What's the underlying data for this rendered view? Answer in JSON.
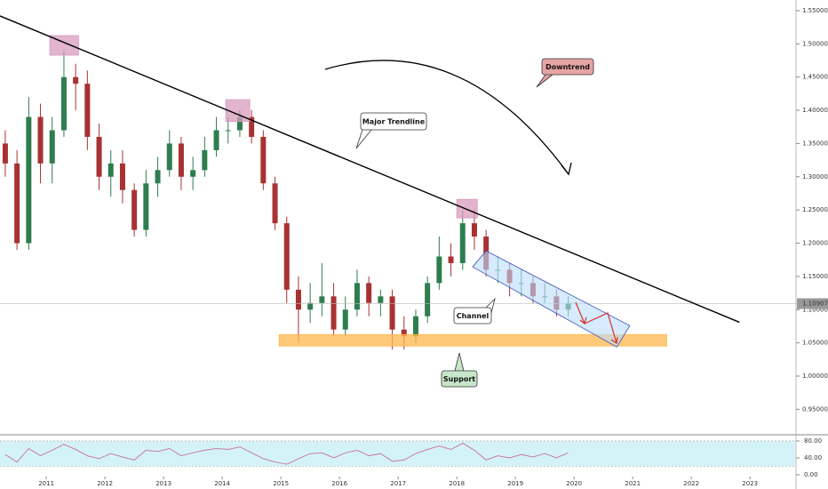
{
  "chart_data": [
    {
      "type": "candlestick",
      "x": [
        2010.3,
        2010.5,
        2010.7,
        2010.9,
        2011.1,
        2011.3,
        2011.5,
        2011.7,
        2011.9,
        2012.1,
        2012.3,
        2012.5,
        2012.7,
        2012.9,
        2013.1,
        2013.3,
        2013.5,
        2013.7,
        2013.9,
        2014.1,
        2014.3,
        2014.5,
        2014.7,
        2014.9,
        2015.1,
        2015.3,
        2015.5,
        2015.7,
        2015.9,
        2016.1,
        2016.3,
        2016.5,
        2016.7,
        2016.9,
        2017.1,
        2017.3,
        2017.5,
        2017.7,
        2017.9,
        2018.1,
        2018.3,
        2018.5,
        2018.7,
        2018.9,
        2019.1,
        2019.3,
        2019.5,
        2019.7,
        2019.9
      ],
      "open": [
        1.35,
        1.32,
        1.2,
        1.39,
        1.32,
        1.37,
        1.45,
        1.44,
        1.36,
        1.3,
        1.32,
        1.28,
        1.22,
        1.29,
        1.31,
        1.35,
        1.3,
        1.31,
        1.34,
        1.37,
        1.37,
        1.39,
        1.36,
        1.29,
        1.23,
        1.13,
        1.1,
        1.11,
        1.12,
        1.07,
        1.1,
        1.14,
        1.11,
        1.12,
        1.07,
        1.06,
        1.09,
        1.14,
        1.18,
        1.17,
        1.23,
        1.21,
        1.16,
        1.16,
        1.14,
        1.14,
        1.12,
        1.12,
        1.1
      ],
      "high": [
        1.37,
        1.34,
        1.42,
        1.41,
        1.39,
        1.49,
        1.47,
        1.46,
        1.38,
        1.34,
        1.34,
        1.29,
        1.31,
        1.33,
        1.37,
        1.36,
        1.33,
        1.36,
        1.39,
        1.39,
        1.4,
        1.4,
        1.37,
        1.3,
        1.24,
        1.15,
        1.14,
        1.17,
        1.14,
        1.12,
        1.16,
        1.15,
        1.13,
        1.13,
        1.09,
        1.1,
        1.15,
        1.21,
        1.2,
        1.25,
        1.25,
        1.22,
        1.18,
        1.17,
        1.16,
        1.15,
        1.14,
        1.13,
        1.12
      ],
      "low": [
        1.3,
        1.19,
        1.19,
        1.29,
        1.29,
        1.36,
        1.4,
        1.34,
        1.28,
        1.27,
        1.26,
        1.21,
        1.21,
        1.27,
        1.3,
        1.28,
        1.28,
        1.3,
        1.33,
        1.35,
        1.36,
        1.35,
        1.28,
        1.22,
        1.11,
        1.05,
        1.08,
        1.09,
        1.06,
        1.06,
        1.09,
        1.09,
        1.09,
        1.04,
        1.04,
        1.05,
        1.08,
        1.13,
        1.15,
        1.16,
        1.19,
        1.15,
        1.14,
        1.12,
        1.12,
        1.11,
        1.11,
        1.09,
        1.09
      ],
      "close": [
        1.32,
        1.2,
        1.39,
        1.32,
        1.37,
        1.45,
        1.44,
        1.36,
        1.3,
        1.32,
        1.28,
        1.22,
        1.29,
        1.31,
        1.35,
        1.3,
        1.31,
        1.34,
        1.37,
        1.37,
        1.39,
        1.36,
        1.29,
        1.23,
        1.13,
        1.1,
        1.11,
        1.12,
        1.07,
        1.1,
        1.14,
        1.11,
        1.12,
        1.07,
        1.06,
        1.09,
        1.14,
        1.18,
        1.17,
        1.23,
        1.21,
        1.16,
        1.16,
        1.14,
        1.14,
        1.12,
        1.12,
        1.1,
        1.11
      ],
      "up_color": "#2e7d4f",
      "down_color": "#a83232",
      "xlim": [
        2010.21,
        2023.77
      ],
      "ylim": [
        0.913,
        1.566
      ],
      "xticks": [
        2011,
        2012,
        2013,
        2014,
        2015,
        2016,
        2017,
        2018,
        2019,
        2020,
        2021,
        2022,
        2023
      ],
      "yticks": [
        {
          "value": 0.95,
          "label": "0.95000"
        },
        {
          "value": 1.0,
          "label": "1.00000"
        },
        {
          "value": 1.05,
          "label": "1.05000"
        },
        {
          "value": 1.1,
          "label": "1.10000"
        },
        {
          "value": 1.15,
          "label": "1.15000"
        },
        {
          "value": 1.2,
          "label": "1.20000"
        },
        {
          "value": 1.25,
          "label": "1.25000"
        },
        {
          "value": 1.3,
          "label": "1.30000"
        },
        {
          "value": 1.35,
          "label": "1.35000"
        },
        {
          "value": 1.4,
          "label": "1.40000"
        },
        {
          "value": 1.45,
          "label": "1.45000"
        },
        {
          "value": 1.5,
          "label": "1.50000"
        },
        {
          "value": 1.55,
          "label": "1.55000"
        }
      ],
      "last_value": {
        "value": 1.10907,
        "label": "1.10907"
      },
      "shapes": [
        {
          "kind": "rect",
          "x": [
            2014.97,
            2021.58
          ],
          "y": [
            1.0452,
            1.0625
          ],
          "color": "#ffb74d"
        },
        {
          "kind": "rect",
          "x": [
            2011.06,
            2011.55
          ],
          "y": [
            1.483,
            1.5125
          ],
          "color": "#d89bbd"
        },
        {
          "kind": "rect",
          "x": [
            2014.06,
            2014.47
          ],
          "y": [
            1.383,
            1.416
          ],
          "color": "#d89bbd"
        },
        {
          "kind": "rect",
          "x": [
            2018.0,
            2018.35
          ],
          "y": [
            1.238,
            1.266
          ],
          "color": "#d89bbd"
        },
        {
          "kind": "polygon",
          "x": [
            2018.5,
            2018.27,
            2020.73,
            2020.95
          ],
          "y": [
            1.1884,
            1.1643,
            1.0438,
            1.0759
          ],
          "color": "#bbdefb"
        },
        {
          "kind": "line",
          "x": [
            2010.21,
            2022.82
          ],
          "y": [
            1.542,
            1.081
          ],
          "color": "#000000"
        }
      ],
      "annotations": [
        "Downtrend",
        "Major Trendline",
        "Channel",
        "Support"
      ]
    },
    {
      "type": "line",
      "values": [
        48,
        30,
        62,
        45,
        58,
        72,
        60,
        45,
        38,
        50,
        42,
        35,
        58,
        55,
        62,
        45,
        52,
        58,
        62,
        60,
        66,
        52,
        38,
        30,
        25,
        38,
        50,
        52,
        40,
        52,
        58,
        45,
        50,
        32,
        35,
        50,
        60,
        68,
        60,
        75,
        58,
        35,
        45,
        40,
        48,
        42,
        50,
        40,
        52
      ],
      "color": "#c77ca8",
      "band": [
        20,
        80
      ],
      "band_color": "#d4f3f8",
      "ylim": [
        0,
        92.6
      ],
      "yticks": [
        {
          "value": 80,
          "label": "80.00"
        },
        {
          "value": 40,
          "label": "40.00"
        },
        {
          "value": 0,
          "label": "0.00"
        }
      ]
    }
  ]
}
